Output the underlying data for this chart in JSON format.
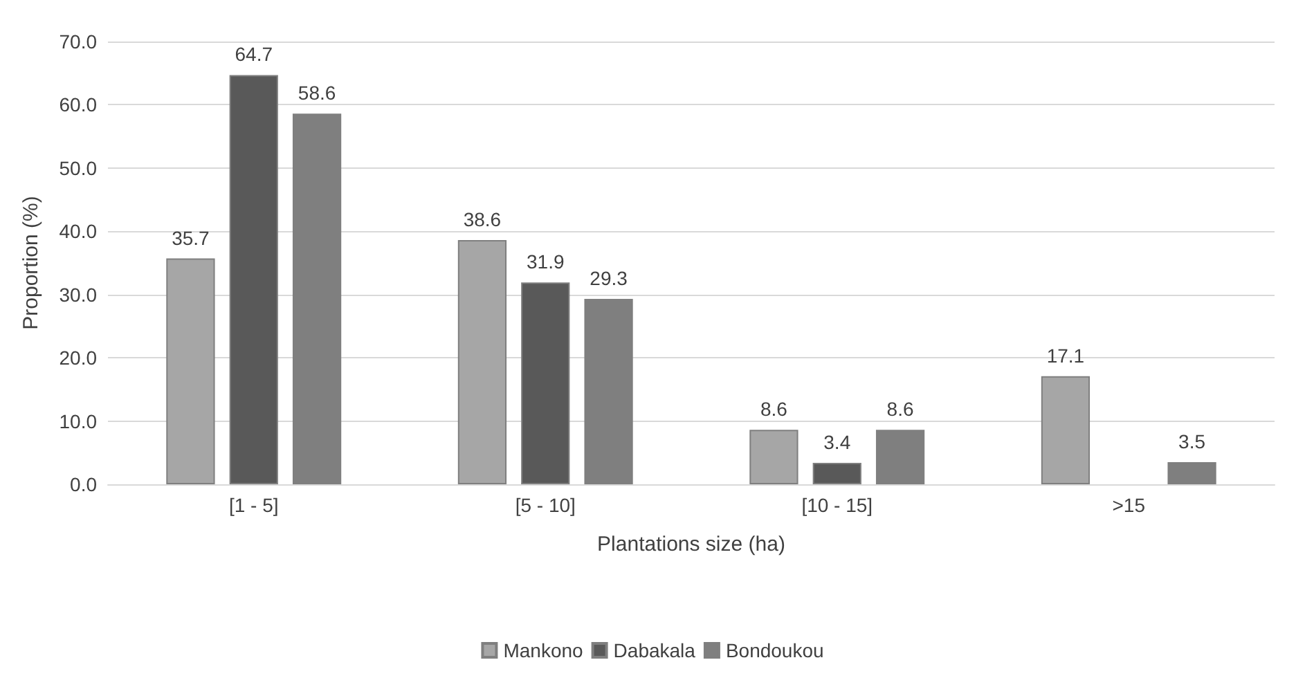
{
  "chart_data": {
    "type": "bar",
    "xlabel": "Plantations size (ha)",
    "ylabel": "Proportion (%)",
    "categories": [
      "[1 - 5]",
      "[5 - 10]",
      "[10 - 15]",
      ">15"
    ],
    "series": [
      {
        "name": "Mankono",
        "color": "#a6a6a6",
        "values": [
          35.7,
          38.6,
          8.6,
          17.1
        ]
      },
      {
        "name": "Dabakala",
        "color": "#595959",
        "values": [
          64.7,
          31.9,
          3.4,
          null
        ]
      },
      {
        "name": "Bondoukou",
        "color": "#7f7f7f",
        "values": [
          58.6,
          29.3,
          8.6,
          3.5
        ]
      }
    ],
    "ylim": [
      0,
      70
    ],
    "yticks": [
      {
        "value": 0,
        "label": "0.0"
      },
      {
        "value": 10,
        "label": "10.0"
      },
      {
        "value": 20,
        "label": "20.0"
      },
      {
        "value": 30,
        "label": "30.0"
      },
      {
        "value": 40,
        "label": "40.0"
      },
      {
        "value": 50,
        "label": "50.0"
      },
      {
        "value": 60,
        "label": "60.0"
      },
      {
        "value": 70,
        "label": "70.0"
      }
    ],
    "grid": "y",
    "legend": "bottom",
    "data_labels": true
  }
}
